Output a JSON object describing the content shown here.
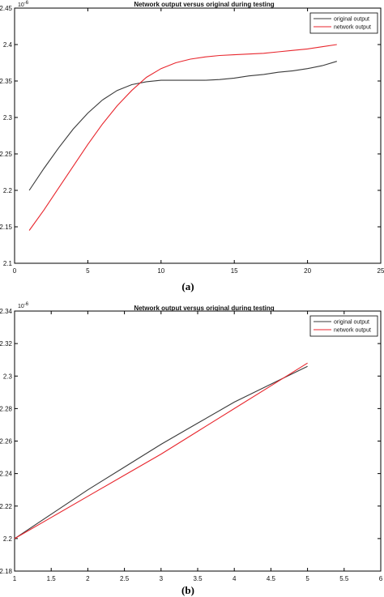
{
  "chart_data": [
    {
      "type": "line",
      "title": "Network output versus original during testing",
      "caption": "(a)",
      "exponent_label": "10",
      "exponent_power": "-6",
      "xlim": [
        0,
        25
      ],
      "ylim": [
        2.1,
        2.45
      ],
      "xticks": [
        0,
        5,
        10,
        15,
        20,
        25
      ],
      "yticks": [
        2.1,
        2.15,
        2.2,
        2.25,
        2.3,
        2.35,
        2.4,
        2.45
      ],
      "xtick_labels": [
        "0",
        "5",
        "10",
        "15",
        "20",
        "25"
      ],
      "ytick_labels": [
        "2.1",
        "2.15",
        "2.2",
        "2.25",
        "2.3",
        "2.35",
        "2.4",
        "2.45"
      ],
      "legend_position": "top-right",
      "grid": false,
      "series": [
        {
          "name": "original output",
          "color": "#3a3a3a",
          "x": [
            1,
            2,
            3,
            4,
            5,
            6,
            7,
            8,
            9,
            10,
            11,
            12,
            13,
            14,
            15,
            16,
            17,
            18,
            19,
            20,
            21,
            22
          ],
          "values": [
            2.2,
            2.23,
            2.258,
            2.284,
            2.306,
            2.324,
            2.337,
            2.345,
            2.349,
            2.351,
            2.351,
            2.351,
            2.351,
            2.352,
            2.354,
            2.357,
            2.359,
            2.362,
            2.364,
            2.367,
            2.371,
            2.377
          ]
        },
        {
          "name": "network output",
          "color": "#e8262d",
          "x": [
            1,
            2,
            3,
            4,
            5,
            6,
            7,
            8,
            9,
            10,
            11,
            12,
            13,
            14,
            15,
            16,
            17,
            18,
            19,
            20,
            21,
            22
          ],
          "values": [
            2.145,
            2.173,
            2.203,
            2.233,
            2.263,
            2.291,
            2.316,
            2.337,
            2.355,
            2.367,
            2.375,
            2.38,
            2.383,
            2.385,
            2.386,
            2.387,
            2.388,
            2.39,
            2.392,
            2.394,
            2.397,
            2.4
          ]
        }
      ]
    },
    {
      "type": "line",
      "title": "Network output versus original during testing",
      "caption": "(b)",
      "exponent_label": "10",
      "exponent_power": "-6",
      "xlim": [
        1,
        6
      ],
      "ylim": [
        2.18,
        2.34
      ],
      "xticks": [
        1,
        1.5,
        2,
        2.5,
        3,
        3.5,
        4,
        4.5,
        5,
        5.5,
        6
      ],
      "yticks": [
        2.18,
        2.2,
        2.22,
        2.24,
        2.26,
        2.28,
        2.3,
        2.32,
        2.34
      ],
      "xtick_labels": [
        "1",
        "1.5",
        "2",
        "2.5",
        "3",
        "3.5",
        "4",
        "4.5",
        "5",
        "5.5",
        "6"
      ],
      "ytick_labels": [
        "2.18",
        "2.2",
        "2.22",
        "2.24",
        "2.26",
        "2.28",
        "2.3",
        "2.32",
        "2.34"
      ],
      "legend_position": "top-right",
      "grid": false,
      "series": [
        {
          "name": "original output",
          "color": "#3a3a3a",
          "x": [
            1,
            1.5,
            2,
            2.5,
            3,
            3.5,
            4,
            4.5,
            5
          ],
          "values": [
            2.2,
            2.215,
            2.23,
            2.244,
            2.258,
            2.271,
            2.284,
            2.295,
            2.306
          ]
        },
        {
          "name": "network output",
          "color": "#e8262d",
          "x": [
            1,
            1.5,
            2,
            2.5,
            3,
            3.5,
            4,
            4.5,
            5
          ],
          "values": [
            2.2,
            2.213,
            2.226,
            2.239,
            2.252,
            2.266,
            2.28,
            2.294,
            2.308
          ]
        }
      ]
    }
  ]
}
